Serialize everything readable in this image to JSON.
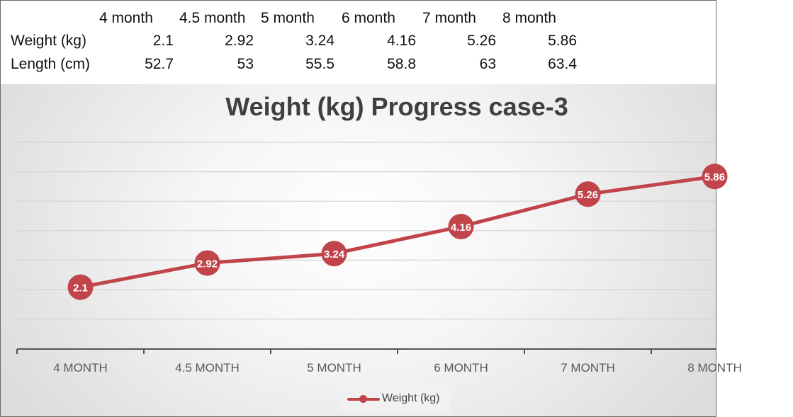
{
  "table": {
    "headers": [
      "4 month",
      "4.5 month",
      "5 month",
      "6 month",
      "7 month",
      "8 month"
    ],
    "rows": [
      {
        "label": "Weight (kg)",
        "values": [
          "2.1",
          "2.92",
          "3.24",
          "4.16",
          "5.26",
          "5.86"
        ]
      },
      {
        "label": "Length (cm)",
        "values": [
          "52.7",
          "53",
          "55.5",
          "58.8",
          "63",
          "63.4"
        ]
      }
    ]
  },
  "chart_data": {
    "type": "line",
    "title": "Weight (kg) Progress case-3",
    "categories": [
      "4 MONTH",
      "4.5 MONTH",
      "5 MONTH",
      "6 MONTH",
      "7 MONTH",
      "8 MONTH"
    ],
    "series": [
      {
        "name": "Weight (kg)",
        "values": [
          2.1,
          2.92,
          3.24,
          4.16,
          5.26,
          5.86
        ],
        "data_labels": [
          "2.1",
          "2.92",
          "3.24",
          "4.16",
          "5.26",
          "5.86"
        ]
      }
    ],
    "xlabel": "",
    "ylabel": "",
    "ylim": [
      0,
      7
    ],
    "grid": true,
    "legend": "bottom",
    "colors": {
      "line": "#c0444a",
      "grid": "#d3d3d3",
      "axis": "#555555",
      "title": "#3f3f3f"
    }
  }
}
